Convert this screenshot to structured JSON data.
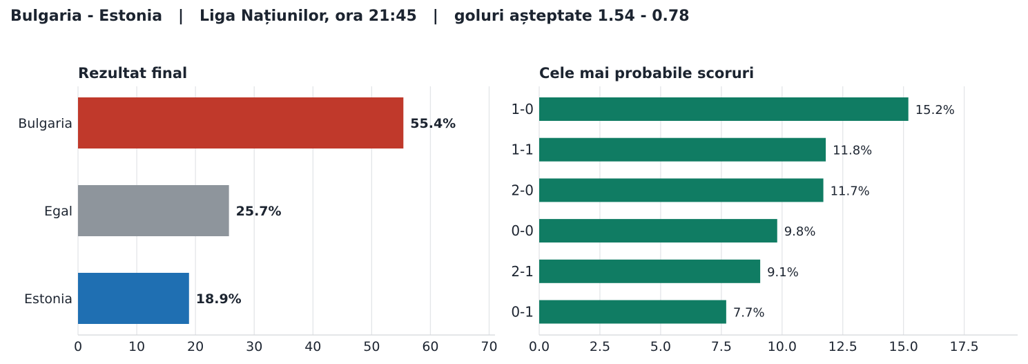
{
  "header": {
    "title": "Bulgaria - Estonia   |   Liga Națiunilor, ora 21:45   |   goluri așteptate 1.54 - 0.78"
  },
  "chart_data": [
    {
      "type": "bar",
      "orientation": "horizontal",
      "title": "Rezultat final",
      "categories": [
        "Bulgaria",
        "Egal",
        "Estonia"
      ],
      "values": [
        55.4,
        25.7,
        18.9
      ],
      "data_labels": [
        "55.4%",
        "25.7%",
        "18.9%"
      ],
      "colors": [
        "#c0392b",
        "#8e959c",
        "#1f6fb2"
      ],
      "xlim": [
        0,
        71
      ],
      "xticks": [
        0,
        10,
        20,
        30,
        40,
        50,
        60,
        70
      ],
      "grid": true
    },
    {
      "type": "bar",
      "orientation": "horizontal",
      "title": "Cele mai probabile scoruri",
      "categories": [
        "1-0",
        "1-1",
        "2-0",
        "0-0",
        "2-1",
        "0-1"
      ],
      "values": [
        15.2,
        11.8,
        11.7,
        9.8,
        9.1,
        7.7
      ],
      "data_labels": [
        "15.2%",
        "11.8%",
        "11.7%",
        "9.8%",
        "9.1%",
        "7.7%"
      ],
      "colors": [
        "#107c63"
      ],
      "xlim": [
        0,
        19.7
      ],
      "xticks": [
        "0.0",
        "2.5",
        "5.0",
        "7.5",
        "10.0",
        "12.5",
        "15.0",
        "17.5"
      ],
      "grid": true
    }
  ]
}
